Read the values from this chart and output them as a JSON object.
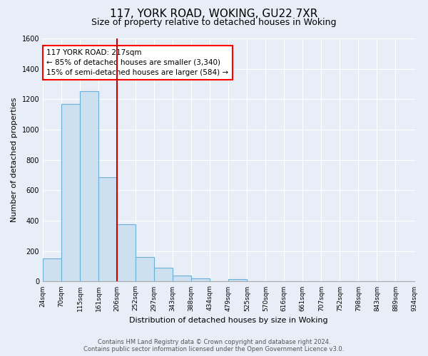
{
  "title": "117, YORK ROAD, WOKING, GU22 7XR",
  "subtitle": "Size of property relative to detached houses in Woking",
  "xlabel": "Distribution of detached houses by size in Woking",
  "ylabel": "Number of detached properties",
  "footer_line1": "Contains HM Land Registry data © Crown copyright and database right 2024.",
  "footer_line2": "Contains public sector information licensed under the Open Government Licence v3.0.",
  "bin_labels": [
    "24sqm",
    "70sqm",
    "115sqm",
    "161sqm",
    "206sqm",
    "252sqm",
    "297sqm",
    "343sqm",
    "388sqm",
    "434sqm",
    "479sqm",
    "525sqm",
    "570sqm",
    "616sqm",
    "661sqm",
    "707sqm",
    "752sqm",
    "798sqm",
    "843sqm",
    "889sqm",
    "934sqm"
  ],
  "bar_values": [
    150,
    1170,
    1255,
    688,
    375,
    160,
    90,
    38,
    22,
    0,
    15,
    0,
    0,
    0,
    0,
    0,
    0,
    0,
    0,
    0
  ],
  "bar_color": "#cce0f0",
  "bar_edge_color": "#6baed6",
  "vline_color": "#cc0000",
  "vline_x": 3.5,
  "ylim": [
    0,
    1600
  ],
  "yticks": [
    0,
    200,
    400,
    600,
    800,
    1000,
    1200,
    1400,
    1600
  ],
  "annotation_text_line1": "117 YORK ROAD: 217sqm",
  "annotation_text_line2": "← 85% of detached houses are smaller (3,340)",
  "annotation_text_line3": "15% of semi-detached houses are larger (584) →",
  "background_color": "#e8eef8",
  "plot_bg_color": "#e8eef8",
  "grid_color": "#ffffff",
  "title_fontsize": 11,
  "subtitle_fontsize": 9,
  "ylabel_fontsize": 8,
  "xlabel_fontsize": 8
}
